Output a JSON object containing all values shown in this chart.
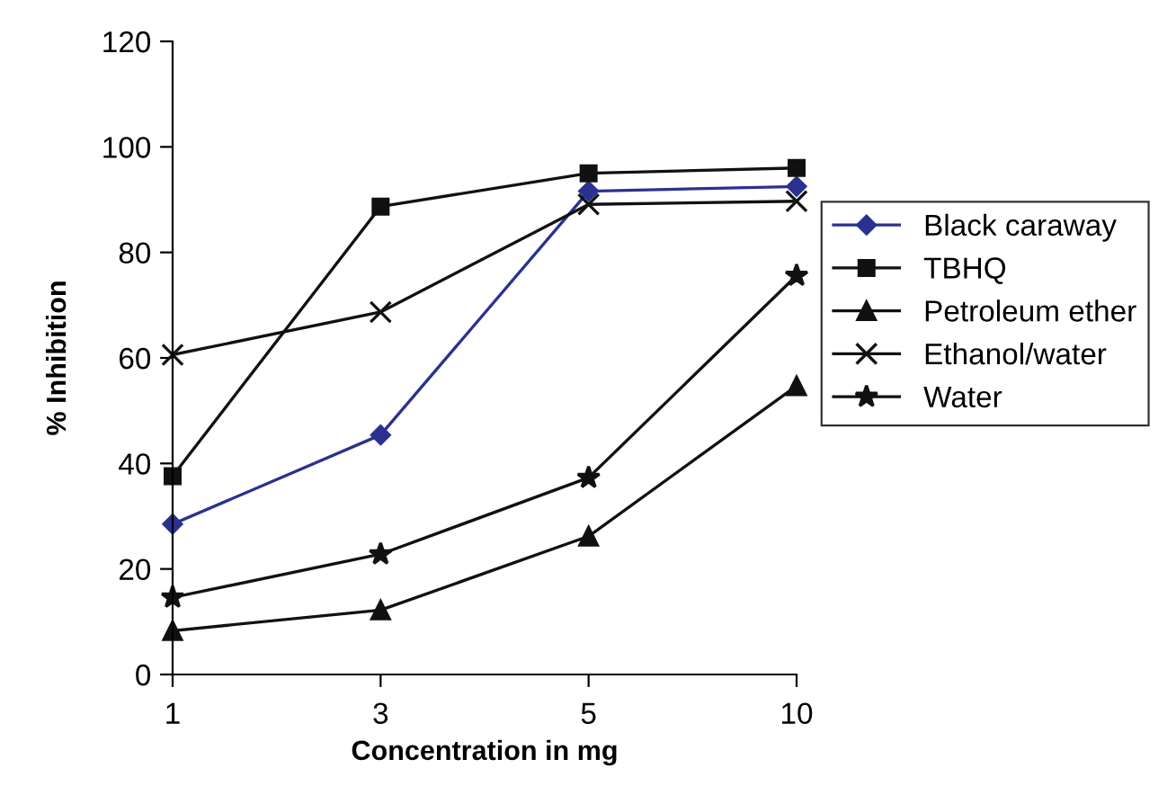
{
  "chart_data": {
    "type": "line",
    "xlabel": "Concentration in mg",
    "ylabel": "% Inhibition",
    "categories": [
      "1",
      "3",
      "5",
      "10"
    ],
    "ylim": [
      0,
      120
    ],
    "yticks": [
      0,
      20,
      40,
      60,
      80,
      100,
      120
    ],
    "grid": false,
    "legend": "right",
    "line_style": "solid",
    "series": [
      {
        "name": "Black caraway",
        "color": "#2b3190",
        "marker": "diamond",
        "values": [
          28.5,
          45.4,
          91.6,
          92.5
        ]
      },
      {
        "name": "TBHQ",
        "color": "#111111",
        "marker": "square",
        "values": [
          37.6,
          88.7,
          95.0,
          96.0
        ]
      },
      {
        "name": "Petroleum ether",
        "color": "#111111",
        "marker": "triangle",
        "values": [
          8.3,
          12.2,
          26.2,
          54.7
        ]
      },
      {
        "name": "Ethanol/water",
        "color": "#111111",
        "marker": "cross",
        "values": [
          60.6,
          68.7,
          89.1,
          89.7
        ]
      },
      {
        "name": "Water",
        "color": "#111111",
        "marker": "star",
        "values": [
          14.6,
          22.8,
          37.3,
          75.6
        ]
      }
    ]
  }
}
